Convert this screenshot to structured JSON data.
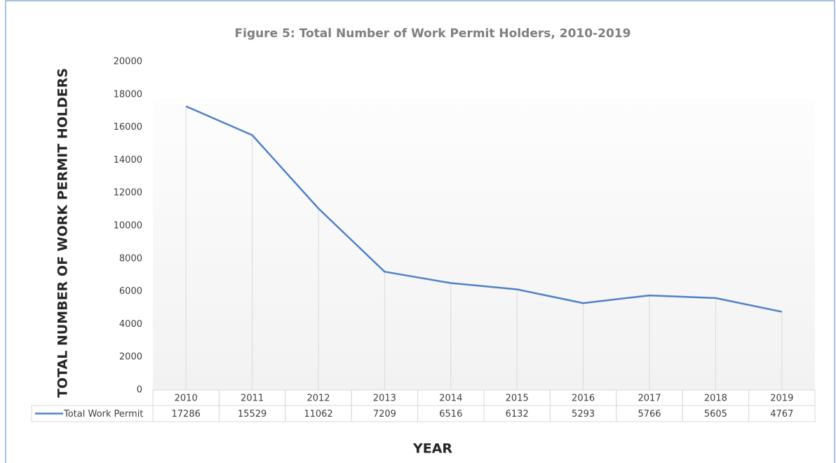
{
  "chart_data": {
    "type": "line",
    "title": "Figure 5: Total Number of Work Permit Holders, 2010-2019",
    "y_label": "TOTAL NUMBER OF WORK PERMIT HOLDERS",
    "x_label": "YEAR",
    "categories": [
      "2010",
      "2011",
      "2012",
      "2013",
      "2014",
      "2015",
      "2016",
      "2017",
      "2018",
      "2019"
    ],
    "series": [
      {
        "name": "Total Work Permit",
        "color": "#4f81c7",
        "values": [
          17286,
          15529,
          11062,
          7209,
          6516,
          6132,
          5293,
          5766,
          5605,
          4767
        ]
      }
    ],
    "ylim": [
      0,
      20000
    ],
    "yticks": [
      0,
      2000,
      4000,
      6000,
      8000,
      10000,
      12000,
      14000,
      16000,
      18000,
      20000
    ],
    "drop_lines": true,
    "data_table": true
  }
}
